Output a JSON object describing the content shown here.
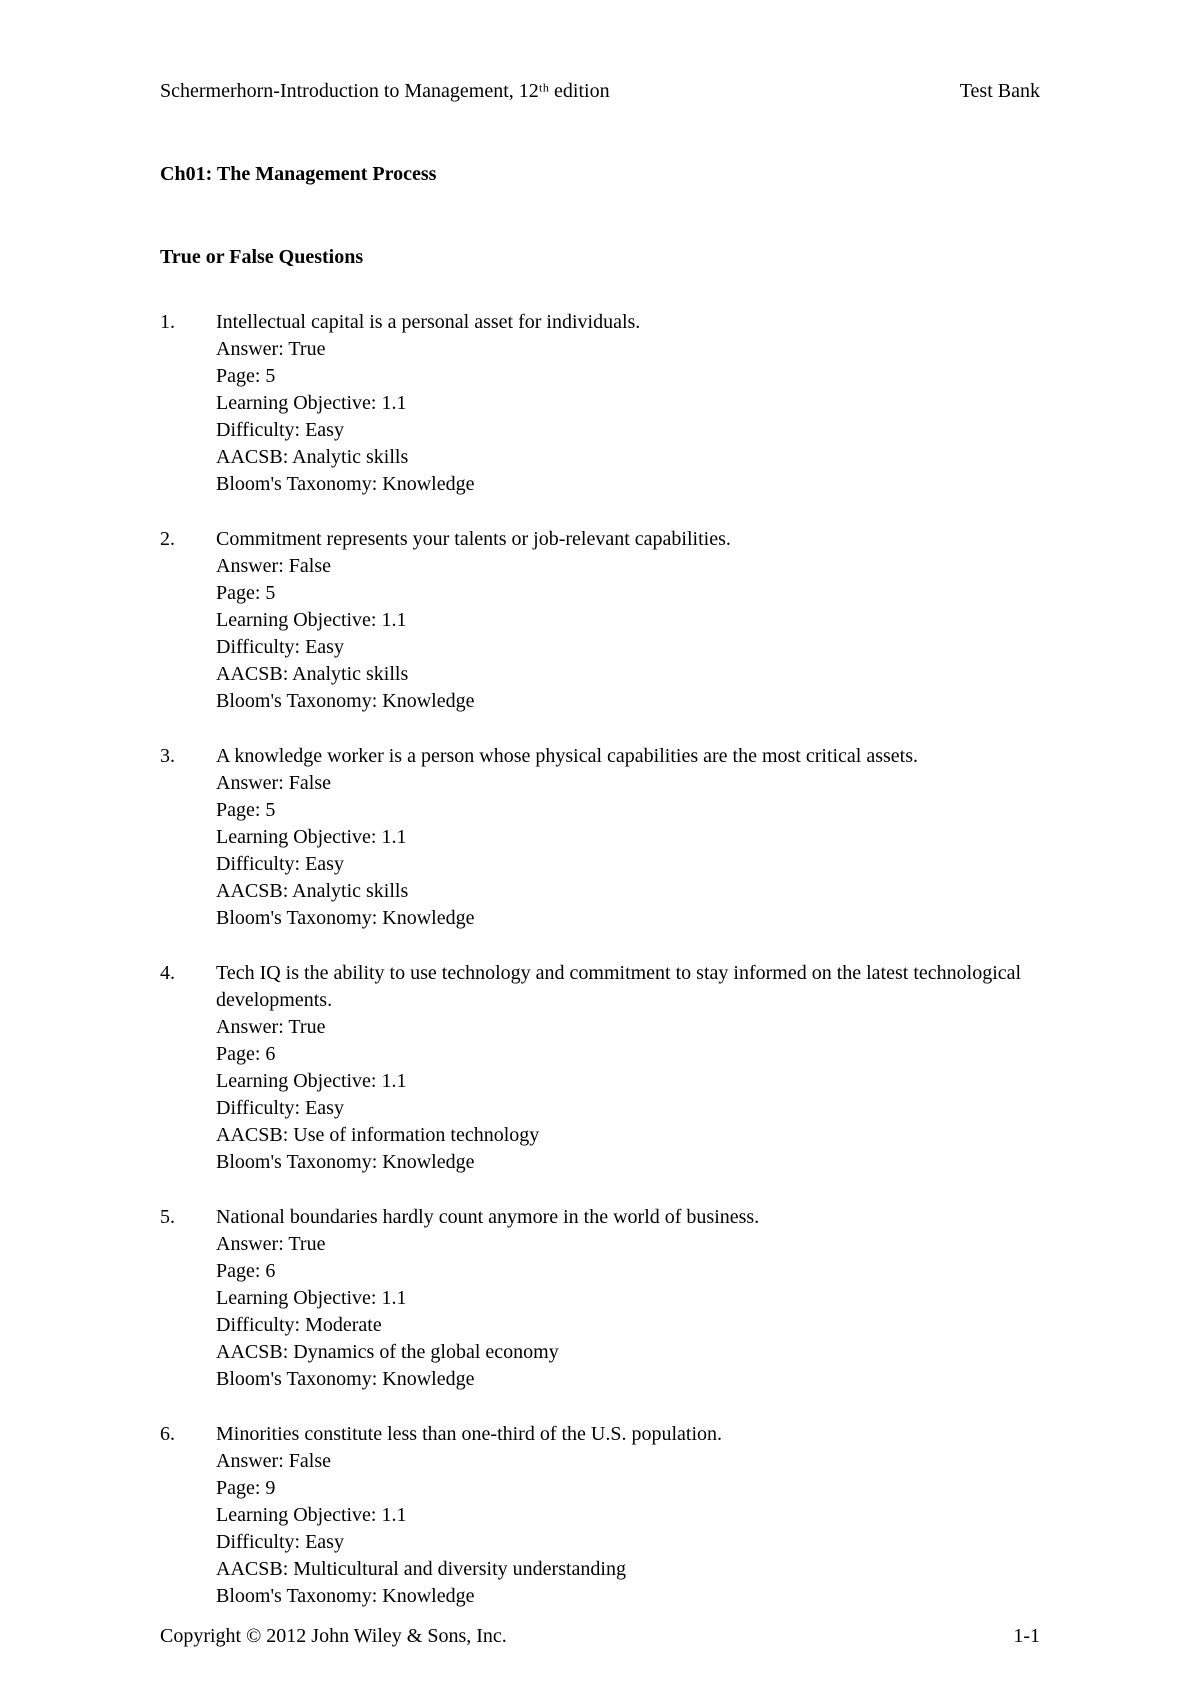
{
  "header": {
    "left": "Schermerhorn-Introduction to Management, 12ᵗʰ edition",
    "right": "Test Bank"
  },
  "chapter_title": "Ch01: The Management Process",
  "section_title": "True or False Questions",
  "questions": [
    {
      "num": "1.",
      "text": "Intellectual capital is a personal asset for individuals.",
      "answer": "Answer: True",
      "page": "Page: 5",
      "objective": "Learning Objective: 1.1",
      "difficulty": "Difficulty: Easy",
      "aacsb": "AACSB: Analytic skills",
      "blooms": "Bloom's Taxonomy: Knowledge"
    },
    {
      "num": "2.",
      "text": "Commitment represents your talents or job-relevant capabilities.",
      "answer": "Answer: False",
      "page": "Page: 5",
      "objective": "Learning Objective: 1.1",
      "difficulty": "Difficulty: Easy",
      "aacsb": "AACSB: Analytic skills",
      "blooms": "Bloom's Taxonomy: Knowledge"
    },
    {
      "num": "3.",
      "text": "A knowledge worker is a person whose physical capabilities are the most critical assets.",
      "answer": "Answer: False",
      "page": "Page: 5",
      "objective": "Learning Objective: 1.1",
      "difficulty": "Difficulty: Easy",
      "aacsb": "AACSB: Analytic skills",
      "blooms": "Bloom's Taxonomy: Knowledge"
    },
    {
      "num": "4.",
      "text": "Tech IQ is the ability to use technology and commitment to stay informed on the latest technological developments.",
      "answer": "Answer: True",
      "page": "Page: 6",
      "objective": "Learning Objective: 1.1",
      "difficulty": "Difficulty: Easy",
      "aacsb": "AACSB: Use of information technology",
      "blooms": "Bloom's Taxonomy: Knowledge"
    },
    {
      "num": "5.",
      "text": "National boundaries hardly count anymore in the world of business.",
      "answer": "Answer: True",
      "page": "Page: 6",
      "objective": "Learning Objective: 1.1",
      "difficulty": "Difficulty: Moderate",
      "aacsb": "AACSB: Dynamics of the global economy",
      "blooms": "Bloom's Taxonomy: Knowledge"
    },
    {
      "num": "6.",
      "text": "Minorities constitute less than one-third of the U.S. population.",
      "answer": "Answer: False",
      "page": "Page: 9",
      "objective": "Learning Objective: 1.1",
      "difficulty": "Difficulty: Easy",
      "aacsb": "AACSB: Multicultural and diversity understanding",
      "blooms": "Bloom's Taxonomy: Knowledge"
    }
  ],
  "footer": {
    "left": "Copyright © 2012 John Wiley & Sons, Inc.",
    "right": "1-1"
  }
}
